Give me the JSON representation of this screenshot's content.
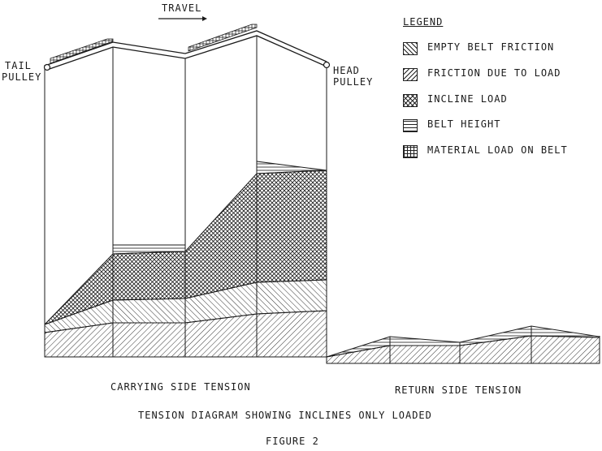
{
  "travel_label": "TRAVEL",
  "tail_pulley": [
    "TAIL",
    "PULLEY"
  ],
  "head_pulley": [
    "HEAD",
    "PULLEY"
  ],
  "legend": {
    "title": "LEGEND",
    "items": [
      {
        "label": "EMPTY BELT FRICTION",
        "pattern": "empty-belt-friction"
      },
      {
        "label": "FRICTION DUE TO LOAD",
        "pattern": "friction-due-to-load"
      },
      {
        "label": "INCLINE LOAD",
        "pattern": "incline-load"
      },
      {
        "label": "BELT HEIGHT",
        "pattern": "belt-height"
      },
      {
        "label": "MATERIAL LOAD ON BELT",
        "pattern": "material-load-on-belt"
      }
    ]
  },
  "carrying_label": "CARRYING SIDE TENSION",
  "return_label": "RETURN SIDE TENSION",
  "caption": "TENSION DIAGRAM SHOWING INCLINES ONLY LOADED",
  "figure_label": "FIGURE 2",
  "ink_color": "#1a1a1a"
}
